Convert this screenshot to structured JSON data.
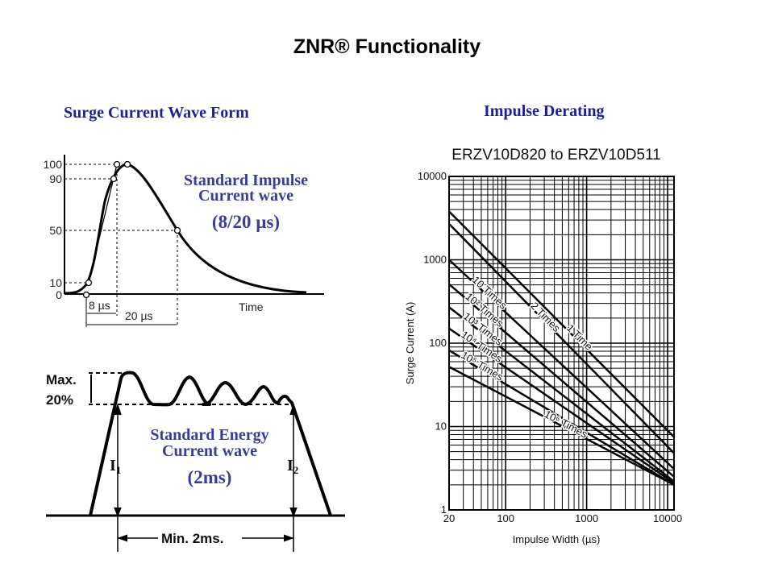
{
  "slide": {
    "title": "ZNR® Functionality",
    "left_heading": "Surge Current Wave Form",
    "right_heading": "Impulse Derating"
  },
  "impulse_wave": {
    "y_ticks": [
      "100",
      "90",
      "50",
      "10",
      "0"
    ],
    "label_line1": "Standard Impulse",
    "label_line2": "Current wave",
    "label_value": "(8/20 µs)",
    "rise_label": "8 µs",
    "duration_label": "20 µs",
    "x_label": "Time"
  },
  "energy_wave": {
    "max_label_line1": "Max.",
    "max_label_line2": "20%",
    "label_line1": "Standard Energy",
    "label_line2": "Current wave",
    "label_value": "(2ms)",
    "i1_label": "I",
    "i1_sub": "1",
    "i2_label": "I",
    "i2_sub": "2",
    "min_label": "Min. 2ms."
  },
  "chart_data": {
    "type": "line",
    "title": "ERZV10D820 to ERZV10D511",
    "xlabel": "Impulse Width (µs)",
    "ylabel": "Surge Current (A)",
    "x_scale": "log",
    "y_scale": "log",
    "xlim": [
      20,
      10000
    ],
    "ylim": [
      1,
      10000
    ],
    "x_ticks": [
      "20",
      "100",
      "1000",
      "10000"
    ],
    "y_ticks": [
      "10000",
      "1000",
      "100",
      "10",
      "1"
    ],
    "grid": true,
    "series": [
      {
        "name": "1 Time",
        "x": [
          20,
          10000
        ],
        "y": [
          3800,
          7.5
        ]
      },
      {
        "name": "2 Times",
        "x": [
          20,
          10000
        ],
        "y": [
          2700,
          4.8
        ]
      },
      {
        "name": "10 Times",
        "x": [
          20,
          10000
        ],
        "y": [
          1000,
          3.1
        ]
      },
      {
        "name": "10² Times",
        "x": [
          20,
          10000
        ],
        "y": [
          510,
          2.5
        ]
      },
      {
        "name": "10³ Times",
        "x": [
          20,
          10000
        ],
        "y": [
          270,
          2.2
        ]
      },
      {
        "name": "10⁴ Times",
        "x": [
          20,
          10000
        ],
        "y": [
          150,
          2.1
        ]
      },
      {
        "name": "10⁵ Times",
        "x": [
          20,
          10000
        ],
        "y": [
          82,
          2.0
        ]
      },
      {
        "name": "10⁶ Times",
        "x": [
          20,
          10000
        ],
        "y": [
          52,
          2.0
        ]
      }
    ]
  }
}
